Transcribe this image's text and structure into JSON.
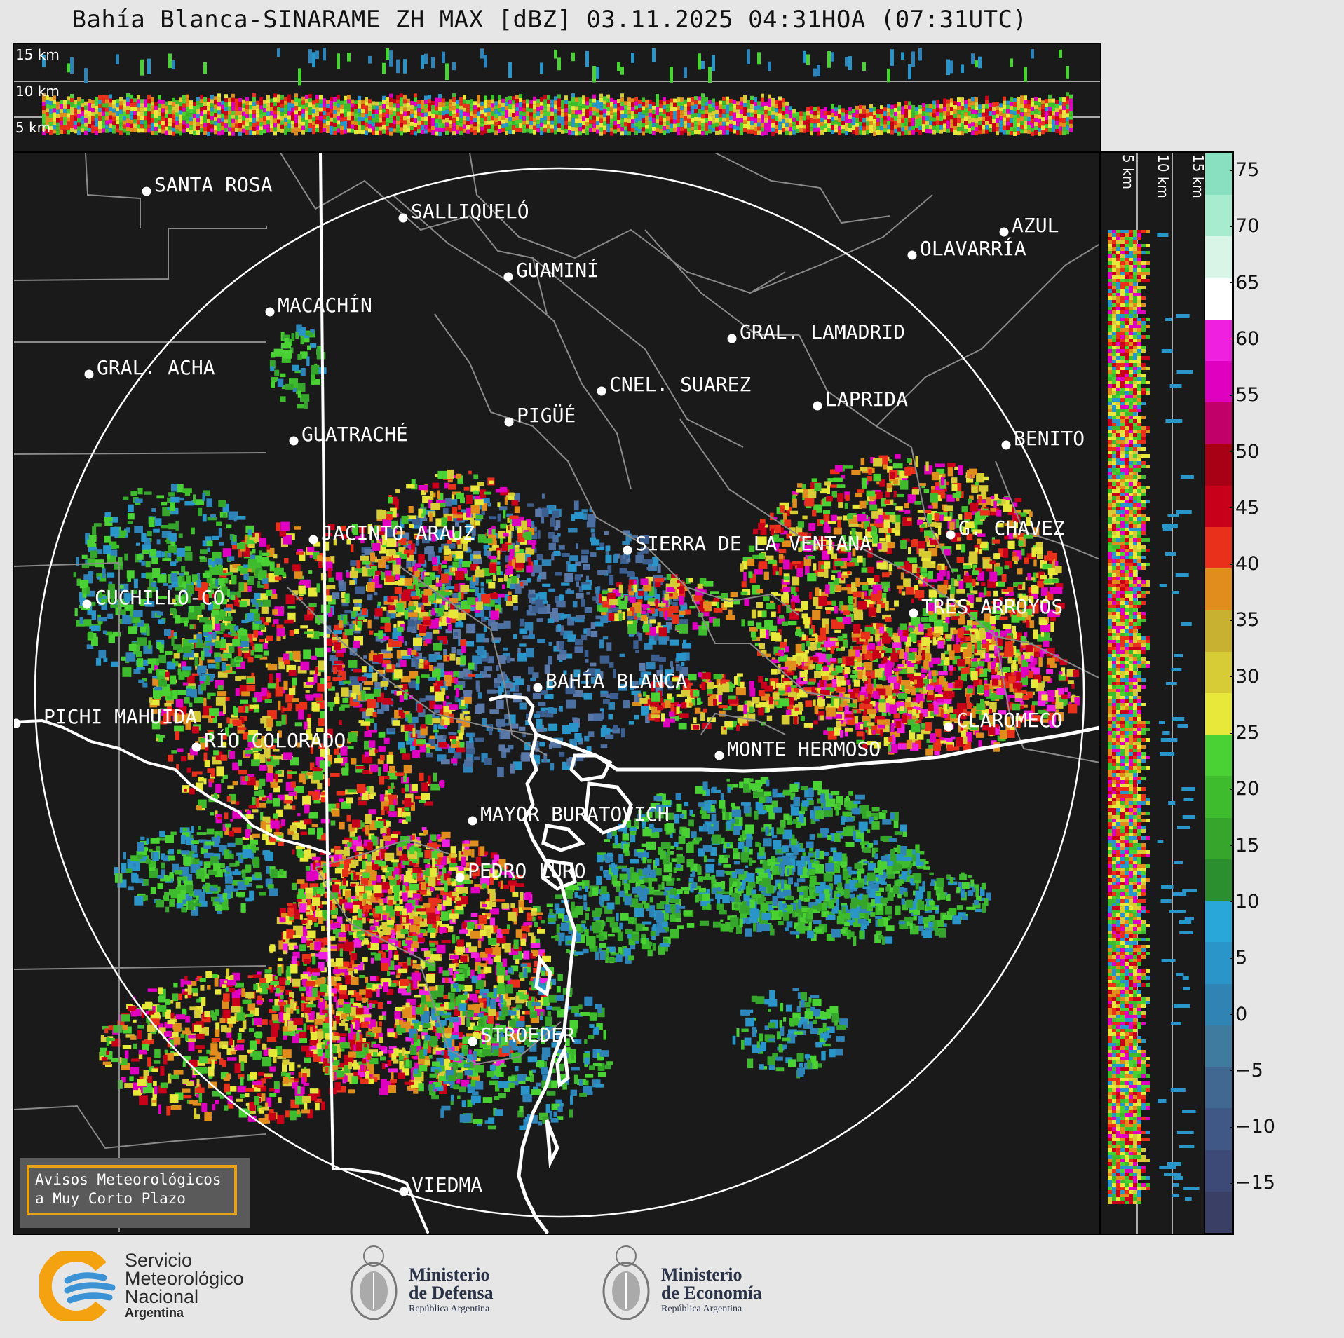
{
  "title": "Bahía Blanca-SINARAME ZH MAX [dBZ] 03.11.2025 04:31HOA (07:31UTC)",
  "height_labels_top": [
    "15 km",
    "10 km",
    "5 km"
  ],
  "height_labels_side": [
    "5 km",
    "10 km",
    "15 km"
  ],
  "colorbar": {
    "ticks": [
      "75",
      "70",
      "65",
      "60",
      "55",
      "50",
      "45",
      "40",
      "35",
      "30",
      "25",
      "20",
      "15",
      "10",
      "5",
      "0",
      "−5",
      "−10",
      "−15"
    ],
    "colors": [
      "#3a3f66",
      "#3d4a78",
      "#3f5885",
      "#416890",
      "#3f7a9f",
      "#2f84b3",
      "#2a95c8",
      "#28a7d8",
      "#2c8f2f",
      "#35a52c",
      "#3fbb2e",
      "#4ad234",
      "#e8e83a",
      "#d8cc36",
      "#c8b030",
      "#e08d1e",
      "#e8301a",
      "#c8001a",
      "#a80014",
      "#c2006a",
      "#e000c0",
      "#f020e0",
      "#ffffff",
      "#d8f5e8",
      "#a8ecd0",
      "#88e0c0"
    ]
  },
  "cities": [
    {
      "name": "SANTA ROSA"
    },
    {
      "name": "SALLIQUELÓ"
    },
    {
      "name": "GUAMINÍ"
    },
    {
      "name": "MACACHÍN"
    },
    {
      "name": "GRAL. ACHA"
    },
    {
      "name": "AZUL"
    },
    {
      "name": "OLAVARRÍA"
    },
    {
      "name": "GRAL. LAMADRID"
    },
    {
      "name": "CNEL. SUAREZ"
    },
    {
      "name": "LAPRIDA"
    },
    {
      "name": "PIGÜÉ"
    },
    {
      "name": "GUATRACHÉ"
    },
    {
      "name": "BENITO"
    },
    {
      "name": "JACINTO ARAUZ"
    },
    {
      "name": "SIERRA DE LA VENTANA"
    },
    {
      "name": "G. CHAVEZ"
    },
    {
      "name": "CUCHILLO-CÓ"
    },
    {
      "name": "TRES ARROYOS"
    },
    {
      "name": "BAHÍA BLANCA"
    },
    {
      "name": "PICHI MAHUIDA"
    },
    {
      "name": "CLAROMECO"
    },
    {
      "name": "MONTE HERMOSO"
    },
    {
      "name": "RÍO COLORADO"
    },
    {
      "name": "MAYOR BURATOVICH"
    },
    {
      "name": "PEDRO LURO"
    },
    {
      "name": "STROEDER"
    },
    {
      "name": "VIEDMA"
    }
  ],
  "warning_box": {
    "line1": "Avisos Meteorológicos",
    "line2": "a Muy Corto Plazo"
  },
  "logos": {
    "smn": {
      "line1": "Servicio",
      "line2": "Meteorológico",
      "line3": "Nacional",
      "line4": "Argentina"
    },
    "defensa": {
      "line1": "Ministerio",
      "line2": "de Defensa",
      "line3": "República Argentina"
    },
    "economia": {
      "line1": "Ministerio",
      "line2": "de Economía",
      "line3": "República Argentina"
    }
  }
}
